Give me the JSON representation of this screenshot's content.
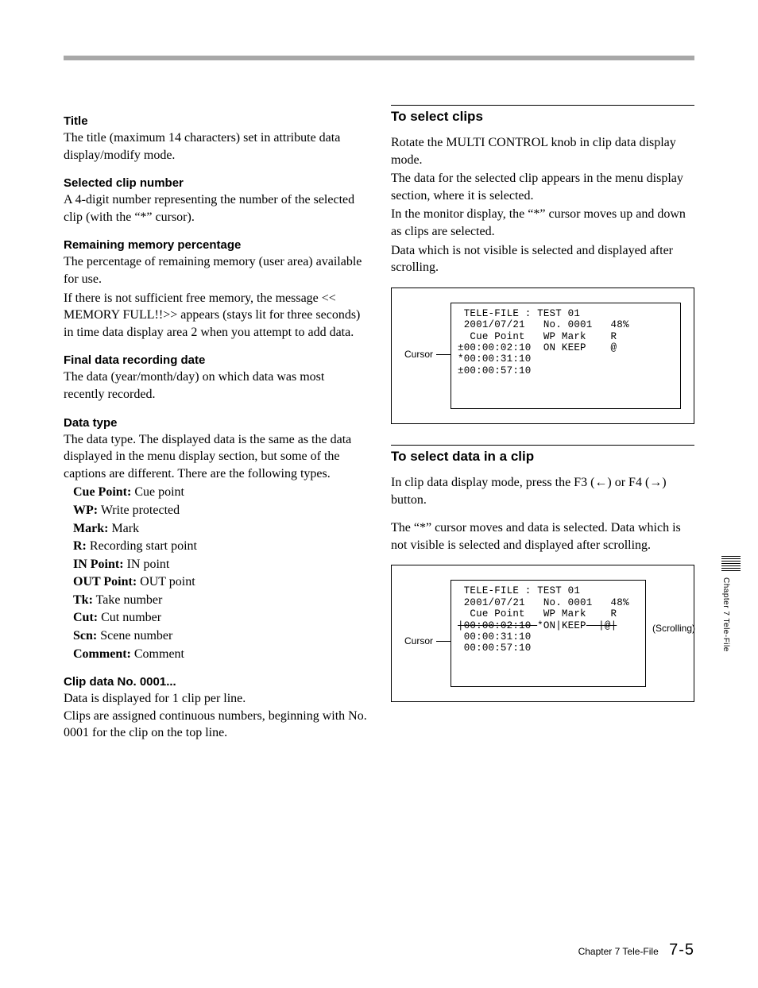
{
  "left": {
    "title_h": "Title",
    "title_b": "The title (maximum 14 characters) set in attribute data display/modify mode.",
    "selclip_h": "Selected clip number",
    "selclip_b": "A 4-digit number representing the number of the selected clip (with the “*” cursor).",
    "remmem_h": "Remaining memory percentage",
    "remmem_b1": "The percentage of remaining memory (user area) available for use.",
    "remmem_b2": "If there is not sufficient free memory, the message << MEMORY FULL!!>> appears (stays lit for three seconds) in time data display area 2 when you attempt to add data.",
    "final_h": "Final data recording date",
    "final_b": "The data (year/month/day) on which data was most recently recorded.",
    "dtype_h": "Data type",
    "dtype_b": "The data type. The displayed data is the same as the data displayed in the menu display section, but some of the captions are different. There are the following types.",
    "types": [
      {
        "t": "Cue Point:",
        "d": " Cue point"
      },
      {
        "t": "WP:",
        "d": " Write protected"
      },
      {
        "t": "Mark:",
        "d": " Mark"
      },
      {
        "t": "R:",
        "d": " Recording start point"
      },
      {
        "t": "IN Point:",
        "d": " IN point"
      },
      {
        "t": "OUT Point:",
        "d": " OUT point"
      },
      {
        "t": "Tk:",
        "d": " Take number"
      },
      {
        "t": "Cut:",
        "d": " Cut number"
      },
      {
        "t": "Scn:",
        "d": " Scene number"
      },
      {
        "t": "Comment:",
        "d": " Comment"
      }
    ],
    "clipno_h": "Clip data No. 0001...",
    "clipno_b": "Data is displayed for 1 clip per line.\nClips are assigned continuous numbers, beginning with No. 0001 for the clip on the top line."
  },
  "right": {
    "sec1_title": "To select clips",
    "sec1_p1": "Rotate the MULTI CONTROL knob in clip data display mode.",
    "sec1_p2": "The data for the selected clip appears in the menu display section, where it is selected.",
    "sec1_p3": "In the monitor display, the “*” cursor moves up and down as clips are selected.",
    "sec1_p4": "Data which is not visible is selected and displayed after scrolling.",
    "fig1_cursor": "Cursor",
    "fig1_screen": " TELE-FILE : TEST 01\n 2001/07/21   No. 0001   48%\n  Cue Point   WP Mark    R\n±00:00:02:10  ON KEEP    @\n*00:00:31:10\n±00:00:57:10",
    "sec2_title": "To select data in a clip",
    "sec2_p1a": "In clip data display mode, press the F3 (",
    "sec2_arrow_l": "←",
    "sec2_p1b": ") or F4 (",
    "sec2_arrow_r": "→",
    "sec2_p1c": ") button.",
    "sec2_p2": "The “*” cursor moves and data is selected. Data which is not visible is selected and displayed after scrolling.",
    "fig2_cursor": "Cursor",
    "fig2_scrolling": "(Scrolling)",
    "fig2_line1": " TELE-FILE : TEST 01",
    "fig2_line2": " 2001/07/21   No. 0001   48%",
    "fig2_line3": "  Cue Point   WP Mark    R",
    "fig2_line4a": "|00:00:02:10 ",
    "fig2_line4b": "*ON|KEEP",
    "fig2_line4c": "  |@|",
    "fig2_line5": " 00:00:31:10",
    "fig2_line6": " 00:00:57:10"
  },
  "side_tab": "Chapter 7  Tele-File",
  "footer_chapter": "Chapter 7   Tele-File",
  "footer_page": "7-5"
}
